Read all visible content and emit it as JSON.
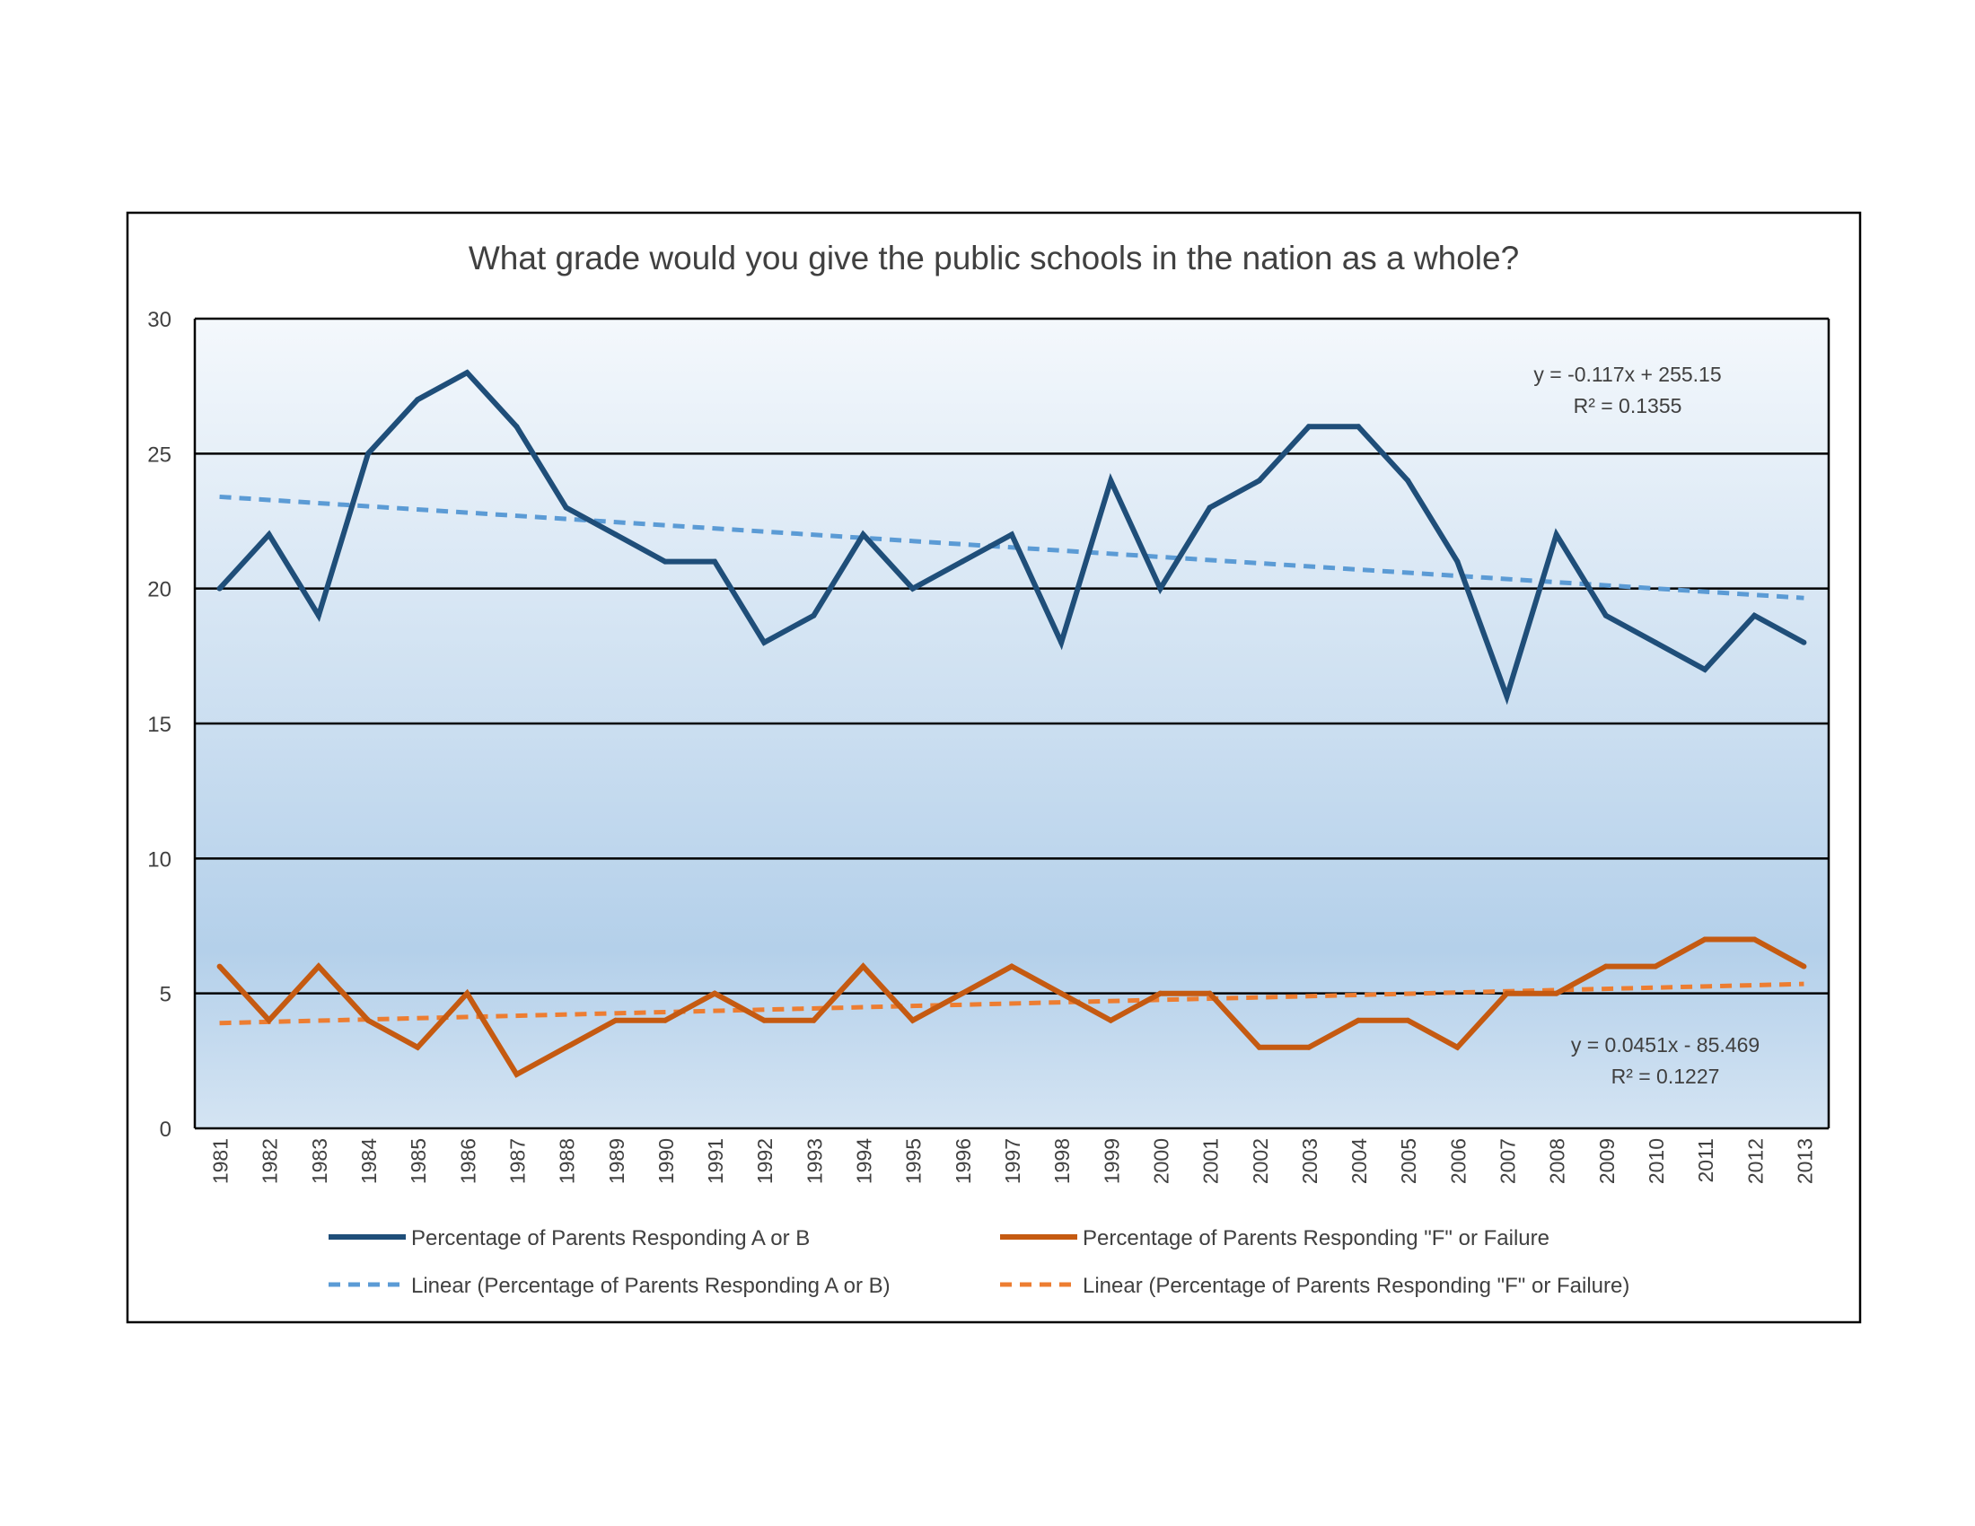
{
  "colors": {
    "series_ab": "#1f4e79",
    "series_f": "#c55a11",
    "trend_ab": "#5b9bd5",
    "trend_f": "#ed7d31",
    "plot_bg_top": "#f4f8fc",
    "plot_bg_bottom": "#b4d0ea",
    "gridline": "#000000",
    "text": "#404040"
  },
  "chart_data": {
    "type": "line",
    "title": "What grade would you give the public schools in the nation as a whole?",
    "xlabel": "",
    "ylabel": "",
    "ylim": [
      0,
      30
    ],
    "yticks": [
      0,
      5,
      10,
      15,
      20,
      25,
      30
    ],
    "grid": true,
    "legend_position": "bottom",
    "x": [
      1981,
      1982,
      1983,
      1984,
      1985,
      1986,
      1987,
      1988,
      1989,
      1990,
      1991,
      1992,
      1993,
      1994,
      1995,
      1996,
      1997,
      1998,
      1999,
      2000,
      2001,
      2002,
      2003,
      2004,
      2005,
      2006,
      2007,
      2008,
      2009,
      2010,
      2011,
      2012,
      2013
    ],
    "series": [
      {
        "name": "Percentage of Parents Responding A or B",
        "values": [
          20,
          22,
          19,
          25,
          27,
          28,
          26,
          23,
          22,
          21,
          21,
          18,
          19,
          22,
          20,
          21,
          22,
          18,
          24,
          20,
          23,
          24,
          26,
          26,
          24,
          21,
          16,
          22,
          19,
          18,
          17,
          19,
          18
        ]
      },
      {
        "name": "Percentage of Parents Responding \"F\" or Failure",
        "values": [
          6,
          4,
          6,
          4,
          3,
          5,
          2,
          3,
          4,
          4,
          5,
          4,
          4,
          6,
          4,
          5,
          6,
          5,
          4,
          5,
          5,
          3,
          3,
          4,
          4,
          3,
          5,
          5,
          6,
          6,
          7,
          7,
          6
        ]
      }
    ],
    "trendlines": [
      {
        "name": "Linear (Percentage of Parents Responding A or B)",
        "equation": "y = -0.117x + 255.15",
        "r2_label": "R² = 0.1355",
        "start": 23.4,
        "end": 19.65
      },
      {
        "name": "Linear (Percentage of Parents Responding \"F\" or Failure)",
        "equation": "y = 0.0451x - 85.469",
        "r2_label": "R² = 0.1227",
        "start": 3.9,
        "end": 5.35
      }
    ]
  }
}
